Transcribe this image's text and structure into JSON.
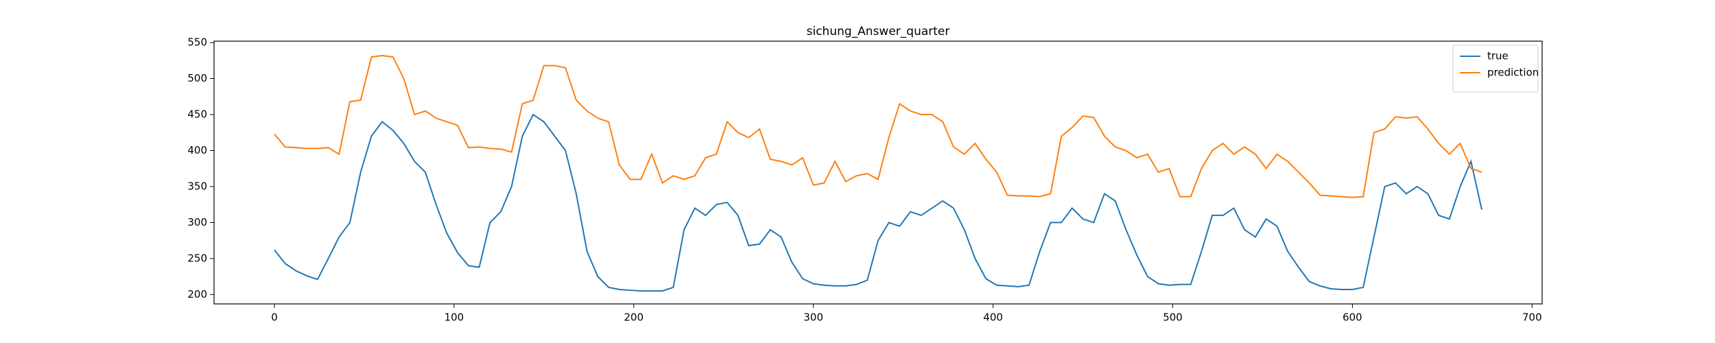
{
  "chart_data": {
    "type": "line",
    "title": "sichung_Answer_quarter",
    "x": [
      0,
      6,
      12,
      18,
      24,
      30,
      36,
      42,
      48,
      54,
      60,
      66,
      72,
      78,
      84,
      90,
      96,
      102,
      108,
      114,
      120,
      126,
      132,
      138,
      144,
      150,
      156,
      162,
      168,
      174,
      180,
      186,
      192,
      198,
      204,
      210,
      216,
      222,
      228,
      234,
      240,
      246,
      252,
      258,
      264,
      270,
      276,
      282,
      288,
      294,
      300,
      306,
      312,
      318,
      324,
      330,
      336,
      342,
      348,
      354,
      360,
      366,
      372,
      378,
      384,
      390,
      396,
      402,
      408,
      414,
      420,
      426,
      432,
      438,
      444,
      450,
      456,
      462,
      468,
      474,
      480,
      486,
      492,
      498,
      504,
      510,
      516,
      522,
      528,
      534,
      540,
      546,
      552,
      558,
      564,
      570,
      576,
      582,
      588,
      594,
      600,
      606,
      612,
      618,
      624,
      630,
      636,
      642,
      648,
      654,
      660,
      666,
      672
    ],
    "series": [
      {
        "name": "true",
        "color": "#1f77b4",
        "values": [
          262,
          243,
          233,
          226,
          221,
          250,
          280,
          300,
          370,
          420,
          440,
          428,
          410,
          385,
          370,
          325,
          285,
          258,
          240,
          238,
          300,
          315,
          350,
          420,
          450,
          440,
          420,
          400,
          340,
          260,
          225,
          210,
          207,
          206,
          205,
          205,
          205,
          210,
          290,
          320,
          310,
          325,
          328,
          310,
          268,
          270,
          290,
          280,
          245,
          222,
          215,
          213,
          212,
          212,
          214,
          220,
          275,
          300,
          295,
          315,
          310,
          320,
          330,
          320,
          290,
          250,
          222,
          213,
          212,
          211,
          213,
          260,
          300,
          300,
          320,
          305,
          300,
          340,
          330,
          290,
          255,
          225,
          215,
          213,
          214,
          214,
          260,
          310,
          310,
          320,
          290,
          280,
          305,
          295,
          260,
          238,
          218,
          212,
          208,
          207,
          207,
          210,
          280,
          350,
          355,
          340,
          350,
          340,
          310,
          305,
          350,
          385,
          318
        ]
      },
      {
        "name": "prediction",
        "color": "#ff7f0e",
        "values": [
          423,
          405,
          404,
          403,
          403,
          404,
          395,
          468,
          470,
          530,
          532,
          530,
          500,
          450,
          455,
          445,
          440,
          435,
          404,
          405,
          403,
          402,
          398,
          465,
          470,
          518,
          518,
          515,
          470,
          455,
          445,
          440,
          380,
          360,
          360,
          395,
          355,
          365,
          360,
          365,
          390,
          395,
          440,
          425,
          418,
          430,
          388,
          385,
          380,
          390,
          352,
          355,
          385,
          357,
          365,
          368,
          360,
          418,
          465,
          455,
          450,
          450,
          440,
          405,
          395,
          410,
          388,
          370,
          338,
          337,
          337,
          336,
          340,
          420,
          432,
          448,
          446,
          420,
          405,
          400,
          390,
          395,
          370,
          375,
          336,
          336,
          375,
          400,
          410,
          395,
          405,
          395,
          375,
          395,
          385,
          370,
          355,
          338,
          337,
          336,
          335,
          336,
          425,
          430,
          447,
          445,
          447,
          430,
          410,
          395,
          410,
          375,
          370
        ]
      }
    ],
    "xlim": [
      -33.6,
      705.6
    ],
    "ylim": [
      187,
      552
    ],
    "xticks": [
      0,
      100,
      200,
      300,
      400,
      500,
      600,
      700
    ],
    "yticks": [
      200,
      250,
      300,
      350,
      400,
      450,
      500,
      550
    ],
    "legend": "upper right"
  }
}
